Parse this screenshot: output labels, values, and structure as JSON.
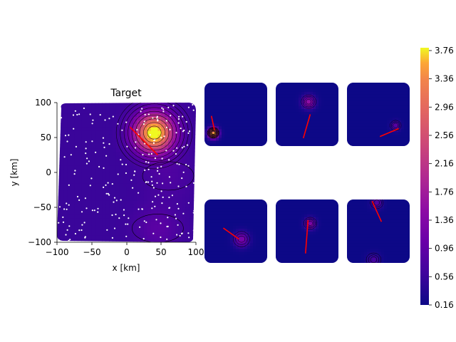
{
  "chart_data": {
    "type": "heatmap",
    "colormap": "plasma",
    "main": {
      "title": "Target",
      "xlabel": "x [km]",
      "ylabel": "y [km]",
      "xlim": [
        -100,
        100
      ],
      "ylim": [
        -100,
        100
      ],
      "xticks": [
        -100,
        -50,
        0,
        50,
        100
      ],
      "yticks": [
        -100,
        -50,
        0,
        50,
        100
      ],
      "xtick_labels": [
        "−100",
        "−50",
        "0",
        "50",
        "100"
      ],
      "ytick_labels": [
        "−100",
        "−50",
        "0",
        "50",
        "100"
      ],
      "peaks": [
        {
          "x": 40,
          "y": 57,
          "amplitude": 3.5,
          "sigma": 19
        }
      ],
      "background": [
        {
          "x": 45,
          "y": -80,
          "amplitude": 0.35,
          "sigma": 22
        },
        {
          "x": 60,
          "y": -5,
          "amplitude": 0.2,
          "sigma": 25
        }
      ],
      "arrow": {
        "x1": 5,
        "y1": 65,
        "x2": 45,
        "y2": 25,
        "color": "#ff0000"
      },
      "scatter_color": "#ffffff",
      "scatter_count": 240
    },
    "panels": [
      {
        "peaks": [
          {
            "x": -72,
            "y": -58,
            "amplitude": 3.6,
            "sigma": 11
          }
        ],
        "arrow": {
          "x1": -78,
          "y1": -5,
          "x2": -68,
          "y2": -50
        }
      },
      {
        "peaks": [
          {
            "x": 5,
            "y": 40,
            "amplitude": 1.4,
            "sigma": 14
          }
        ],
        "arrow": {
          "x1": 10,
          "y1": 0,
          "x2": -12,
          "y2": -75
        }
      },
      {
        "peaks": [
          {
            "x": 55,
            "y": -35,
            "amplitude": 0.8,
            "sigma": 10
          }
        ],
        "arrow": {
          "x1": 65,
          "y1": -45,
          "x2": 5,
          "y2": -70
        }
      },
      {
        "peaks": [
          {
            "x": 18,
            "y": -25,
            "amplitude": 1.1,
            "sigma": 16
          }
        ],
        "arrow": {
          "x1": -40,
          "y1": 10,
          "x2": 10,
          "y2": -25
        }
      },
      {
        "peaks": [
          {
            "x": 10,
            "y": 25,
            "amplitude": 1.2,
            "sigma": 12
          }
        ],
        "arrow": {
          "x1": 3,
          "y1": 35,
          "x2": -5,
          "y2": -70
        }
      },
      {
        "peaks": [
          {
            "x": -5,
            "y": 90,
            "amplitude": 0.7,
            "sigma": 12
          },
          {
            "x": -15,
            "y": -90,
            "amplitude": 0.5,
            "sigma": 14
          }
        ],
        "arrow": {
          "x1": -20,
          "y1": 95,
          "x2": 10,
          "y2": 30
        }
      }
    ],
    "colorbar": {
      "min": 0.16,
      "max": 3.8,
      "ticks": [
        0.16,
        0.56,
        0.96,
        1.36,
        1.76,
        2.16,
        2.56,
        2.96,
        3.36,
        3.76
      ],
      "tick_labels": [
        "0.16",
        "0.56",
        "0.96",
        "1.36",
        "1.76",
        "2.16",
        "2.56",
        "2.96",
        "3.36",
        "3.76"
      ]
    }
  }
}
